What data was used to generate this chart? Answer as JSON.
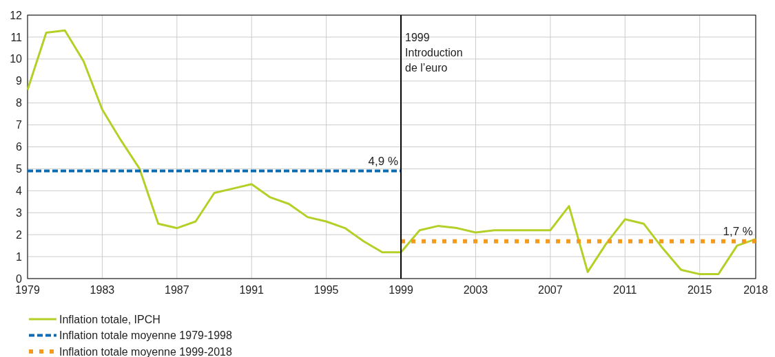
{
  "chart_data": {
    "type": "line",
    "x": [
      1979,
      1980,
      1981,
      1982,
      1983,
      1984,
      1985,
      1986,
      1987,
      1988,
      1989,
      1990,
      1991,
      1992,
      1993,
      1994,
      1995,
      1996,
      1997,
      1998,
      1999,
      2000,
      2001,
      2002,
      2003,
      2004,
      2005,
      2006,
      2007,
      2008,
      2009,
      2010,
      2011,
      2012,
      2013,
      2014,
      2015,
      2016,
      2017,
      2018
    ],
    "series": [
      {
        "name": "Inflation totale, IPCH",
        "color": "#b5cf26",
        "line_style": "solid",
        "values": [
          8.6,
          11.2,
          11.3,
          9.9,
          7.7,
          6.3,
          5.0,
          2.5,
          2.3,
          2.6,
          3.9,
          4.1,
          4.3,
          3.7,
          3.4,
          2.8,
          2.6,
          2.3,
          1.7,
          1.2,
          1.2,
          2.2,
          2.4,
          2.3,
          2.1,
          2.2,
          2.2,
          2.2,
          2.2,
          3.3,
          0.3,
          1.6,
          2.7,
          2.5,
          1.4,
          0.4,
          0.2,
          0.2,
          1.5,
          1.8
        ]
      },
      {
        "name": "Inflation totale moyenne 1979-1998",
        "color": "#0a6bb3",
        "line_style": "dashed",
        "x": [
          1979,
          1999
        ],
        "values": [
          4.9,
          4.9
        ]
      },
      {
        "name": "Inflation totale moyenne 1999-2018",
        "color": "#f39a1f",
        "line_style": "dotted",
        "x": [
          1999,
          2018
        ],
        "values": [
          1.7,
          1.7
        ]
      }
    ],
    "xlim": [
      1979,
      2018
    ],
    "xticks": [
      1979,
      1983,
      1987,
      1991,
      1995,
      1999,
      2003,
      2007,
      2011,
      2015,
      2018
    ],
    "ylim": [
      0,
      12
    ],
    "yticks": [
      0,
      1,
      2,
      3,
      4,
      5,
      6,
      7,
      8,
      9,
      10,
      11,
      12
    ],
    "grid": true,
    "legend": "bottom",
    "marker": "none",
    "ref_lines": [
      {
        "axis": "x",
        "value": 1999,
        "label": "1999\nIntroduction\nde l’euro",
        "color": "#000000"
      }
    ],
    "annotations": [
      {
        "text": "4,9 %",
        "x": 1999,
        "y": 4.9
      },
      {
        "text": "1,7 %",
        "x": 2018,
        "y": 1.7
      }
    ]
  }
}
